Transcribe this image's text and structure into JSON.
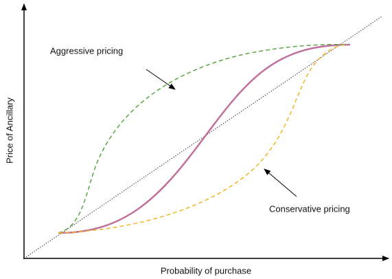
{
  "diagram": {
    "x_axis_label": "Probability of purchase",
    "y_axis_label": "Price of Ancillary",
    "annotations": [
      "Aggressive pricing",
      "Conservative pricing"
    ]
  }
}
